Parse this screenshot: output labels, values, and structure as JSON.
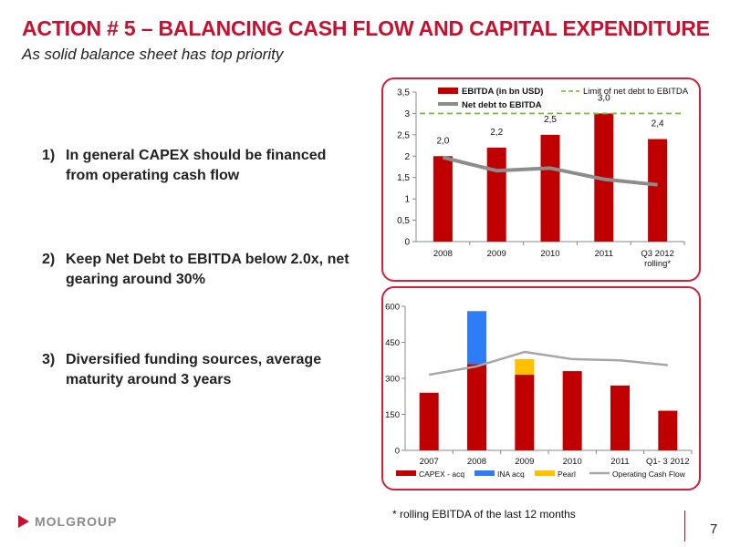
{
  "slide": {
    "title": "ACTION  # 5 – BALANCING CASH FLOW AND CAPITAL EXPENDITURE",
    "subtitle": "As solid balance sheet has top priority",
    "points": [
      {
        "num": "1)",
        "text": "In general CAPEX should be financed from operating cash flow"
      },
      {
        "num": "2)",
        "text": "Keep Net Debt to EBITDA below 2.0x, net gearing around 30%"
      },
      {
        "num": "3)",
        "text": "Diversified funding sources, average maturity around 3 years"
      }
    ],
    "footnote": "* rolling EBITDA of the last 12 months",
    "logo_text": "MOLGROUP",
    "page_number": "7"
  },
  "colors": {
    "accent": "#c8102e",
    "ebitda_bar": "#c00000",
    "net_debt_line": "#8c8c8c",
    "limit_line": "#7cc242",
    "ina": "#2e7cf6",
    "pearl": "#ffc000",
    "ocf_line": "#a6a6a6"
  },
  "chart_data": [
    {
      "type": "bar",
      "categories": [
        "2008",
        "2009",
        "2010",
        "2011",
        "Q3 2012 rolling*"
      ],
      "series": [
        {
          "name": "EBITDA (in bn USD)",
          "values": [
            2.0,
            2.2,
            2.5,
            3.0,
            2.4
          ],
          "labels": [
            "2,0",
            "2,2",
            "2,5",
            "3,0",
            "2,4"
          ]
        },
        {
          "name": "Net debt to EBITDA",
          "kind": "line",
          "values": [
            1.97,
            1.66,
            1.72,
            1.46,
            1.33
          ]
        },
        {
          "name": "Limit of net debt to EBITDA",
          "kind": "dashed-line",
          "value": 3.0
        }
      ],
      "yticks": [
        "0",
        "0,5",
        "1",
        "1,5",
        "2",
        "2,5",
        "3",
        "3,5"
      ],
      "ylim": [
        0,
        3.5
      ],
      "grid": false,
      "legend": "top"
    },
    {
      "type": "bar",
      "stacked": true,
      "categories": [
        "2007",
        "2008",
        "2009",
        "2010",
        "2011",
        "Q1- 3 2012"
      ],
      "series": [
        {
          "name": "CAPEX - acq",
          "values": [
            240,
            360,
            315,
            330,
            270,
            165
          ]
        },
        {
          "name": "INA acq",
          "values": [
            0,
            220,
            0,
            0,
            0,
            0
          ]
        },
        {
          "name": "Pearl",
          "values": [
            0,
            0,
            65,
            0,
            0,
            0
          ]
        },
        {
          "name": "Operating Cash Flow",
          "kind": "line",
          "values": [
            315,
            350,
            410,
            380,
            375,
            355
          ]
        }
      ],
      "yticks": [
        "0",
        "150",
        "300",
        "450",
        "600"
      ],
      "ylim": [
        0,
        600
      ],
      "grid": false,
      "legend": "bottom"
    }
  ]
}
